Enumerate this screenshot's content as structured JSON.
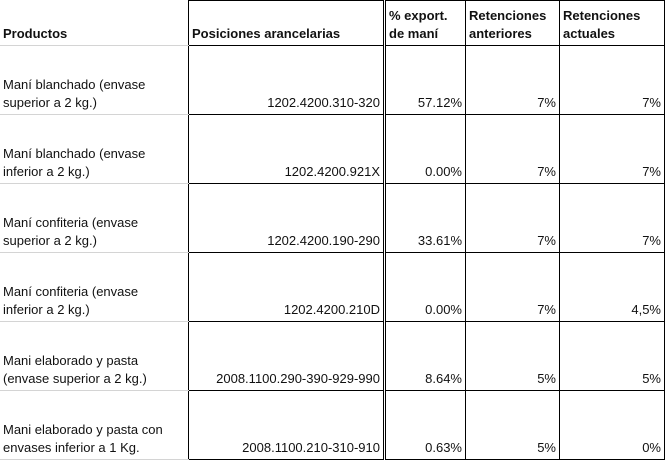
{
  "headers": {
    "productos": "Productos",
    "posiciones": "Posiciones arancelarias",
    "export_line1": "% export.",
    "export_line2": "de maní",
    "anteriores_line1": "Retenciones",
    "anteriores_line2": "anteriores",
    "actuales_line1": "Retenciones",
    "actuales_line2": "actuales"
  },
  "rows": [
    {
      "product_line1": "Maní blanchado (envase",
      "product_line2": "superior a 2 kg.)",
      "posicion": "1202.4200.310-320",
      "export": "57.12%",
      "anteriores": "7%",
      "actuales": "7%"
    },
    {
      "product_line1": "Maní blanchado (envase",
      "product_line2": "inferior a 2 kg.)",
      "posicion": "1202.4200.921X",
      "export": "0.00%",
      "anteriores": "7%",
      "actuales": "7%"
    },
    {
      "product_line1": "Maní confiteria (envase",
      "product_line2": "superior a 2 kg.)",
      "posicion": "1202.4200.190-290",
      "export": "33.61%",
      "anteriores": "7%",
      "actuales": "7%"
    },
    {
      "product_line1": "Maní confiteria (envase",
      "product_line2": "inferior a 2 kg.)",
      "posicion": "1202.4200.210D",
      "export": "0.00%",
      "anteriores": "7%",
      "actuales": "4,5%"
    },
    {
      "product_line1": "Mani elaborado y pasta",
      "product_line2": "(envase superior a 2 kg.)",
      "posicion": "2008.1100.290-390-929-990",
      "export": "8.64%",
      "anteriores": "5%",
      "actuales": "5%"
    },
    {
      "product_line1": "Mani elaborado y pasta con",
      "product_line2": "envases inferior a 1 Kg.",
      "posicion": "2008.1100.210-310-910",
      "export": "0.63%",
      "anteriores": "5%",
      "actuales": "0%"
    }
  ]
}
